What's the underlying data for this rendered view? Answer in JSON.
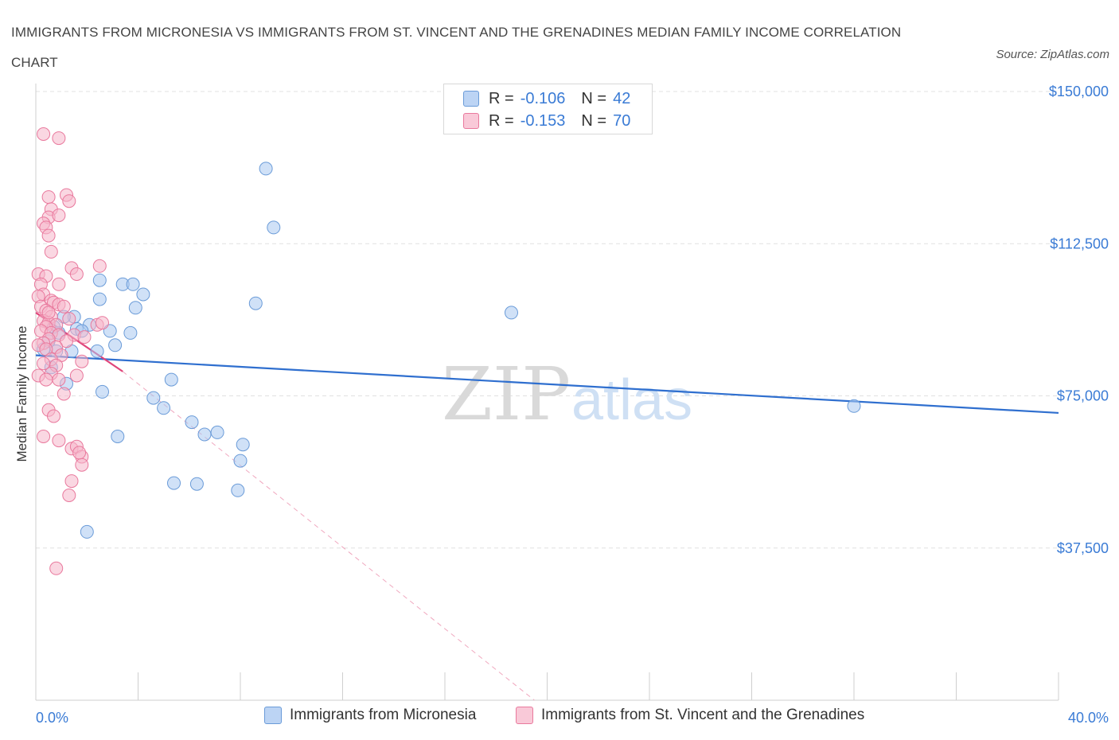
{
  "header": {
    "title": "IMMIGRANTS FROM MICRONESIA VS IMMIGRANTS FROM ST. VINCENT AND THE GRENADINES MEDIAN FAMILY INCOME CORRELATION CHART",
    "source": "Source: ZipAtlas.com"
  },
  "legend": {
    "row1": {
      "r_label": "R =",
      "r_value": "-0.106",
      "n_label": "N =",
      "n_value": "42"
    },
    "row2": {
      "r_label": "R =",
      "r_value": "-0.153",
      "n_label": "N =",
      "n_value": "70"
    }
  },
  "bottom_legend": {
    "series1": "Immigrants from Micronesia",
    "series2": "Immigrants from St. Vincent and the Grenadines"
  },
  "watermark": {
    "part1": "ZIP",
    "part2": "atlas"
  },
  "colors": {
    "blue_fill": "#a9c8f0",
    "blue_stroke": "#6a9bd8",
    "blue_line": "#2f6fcf",
    "pink_fill": "#f6b6ca",
    "pink_stroke": "#e9799d",
    "pink_line": "#e0457a",
    "axis_text": "#3a7bd5",
    "grid": "#e0e0e0"
  },
  "chart_data": {
    "type": "scatter",
    "title": "IMMIGRANTS FROM MICRONESIA VS IMMIGRANTS FROM ST. VINCENT AND THE GRENADINES MEDIAN FAMILY INCOME CORRELATION CHART",
    "xlabel": "",
    "ylabel": "Median Family Income",
    "xlim": [
      0,
      40
    ],
    "ylim": [
      0,
      150000
    ],
    "x_tick_labels": [
      "0.0%",
      "40.0%"
    ],
    "y_ticks": [
      37500,
      75000,
      112500,
      150000
    ],
    "y_tick_labels": [
      "$37,500",
      "$75,000",
      "$112,500",
      "$150,000"
    ],
    "grid": true,
    "series": [
      {
        "name": "Immigrants from Micronesia",
        "color": "blue",
        "points": [
          [
            9.0,
            131000
          ],
          [
            9.3,
            116500
          ],
          [
            2.5,
            103500
          ],
          [
            3.4,
            102500
          ],
          [
            3.8,
            102500
          ],
          [
            4.2,
            100000
          ],
          [
            2.5,
            98800
          ],
          [
            8.6,
            97800
          ],
          [
            3.9,
            96700
          ],
          [
            18.6,
            95500
          ],
          [
            1.5,
            94500
          ],
          [
            2.1,
            92500
          ],
          [
            1.6,
            91500
          ],
          [
            3.7,
            90500
          ],
          [
            0.5,
            88500
          ],
          [
            3.1,
            87500
          ],
          [
            0.8,
            86000
          ],
          [
            1.4,
            86000
          ],
          [
            2.4,
            86000
          ],
          [
            0.6,
            82000
          ],
          [
            1.2,
            78000
          ],
          [
            5.3,
            79000
          ],
          [
            2.6,
            76000
          ],
          [
            4.6,
            74500
          ],
          [
            5.0,
            72000
          ],
          [
            6.1,
            68500
          ],
          [
            7.1,
            66000
          ],
          [
            6.6,
            65500
          ],
          [
            3.2,
            65000
          ],
          [
            8.1,
            63000
          ],
          [
            8.0,
            59000
          ],
          [
            5.4,
            53500
          ],
          [
            6.3,
            53300
          ],
          [
            7.9,
            51700
          ],
          [
            2.0,
            41500
          ],
          [
            32.0,
            72500
          ],
          [
            1.8,
            91000
          ],
          [
            0.9,
            90500
          ],
          [
            0.3,
            86500
          ],
          [
            1.1,
            94500
          ],
          [
            0.7,
            92000
          ],
          [
            2.9,
            91000
          ]
        ],
        "trend": {
          "x": [
            0,
            40
          ],
          "y": [
            85000,
            70800
          ]
        }
      },
      {
        "name": "Immigrants from St. Vincent and the Grenadines",
        "color": "pink",
        "points": [
          [
            0.3,
            139500
          ],
          [
            0.9,
            138500
          ],
          [
            1.2,
            124500
          ],
          [
            0.5,
            124000
          ],
          [
            1.3,
            123000
          ],
          [
            0.6,
            121000
          ],
          [
            0.5,
            119000
          ],
          [
            0.9,
            119500
          ],
          [
            0.3,
            117500
          ],
          [
            0.4,
            116500
          ],
          [
            0.5,
            114500
          ],
          [
            0.6,
            110500
          ],
          [
            2.5,
            107000
          ],
          [
            1.4,
            106500
          ],
          [
            0.1,
            105000
          ],
          [
            1.6,
            105000
          ],
          [
            0.4,
            104500
          ],
          [
            0.9,
            102500
          ],
          [
            0.2,
            102500
          ],
          [
            0.3,
            100000
          ],
          [
            0.1,
            99500
          ],
          [
            0.6,
            98500
          ],
          [
            0.7,
            98000
          ],
          [
            0.9,
            97500
          ],
          [
            1.1,
            97000
          ],
          [
            0.2,
            97000
          ],
          [
            0.4,
            96000
          ],
          [
            0.6,
            94500
          ],
          [
            1.3,
            94000
          ],
          [
            0.3,
            93500
          ],
          [
            0.5,
            93000
          ],
          [
            0.8,
            92500
          ],
          [
            2.4,
            92500
          ],
          [
            0.4,
            92000
          ],
          [
            2.6,
            93000
          ],
          [
            0.2,
            91000
          ],
          [
            0.6,
            90500
          ],
          [
            0.9,
            90000
          ],
          [
            1.5,
            90000
          ],
          [
            1.9,
            89500
          ],
          [
            0.5,
            89000
          ],
          [
            1.2,
            88500
          ],
          [
            0.3,
            88000
          ],
          [
            0.1,
            87500
          ],
          [
            0.8,
            87000
          ],
          [
            0.4,
            86500
          ],
          [
            1.0,
            85000
          ],
          [
            0.6,
            84000
          ],
          [
            0.3,
            83000
          ],
          [
            1.8,
            83500
          ],
          [
            0.8,
            82500
          ],
          [
            0.6,
            80500
          ],
          [
            0.1,
            80000
          ],
          [
            1.6,
            80000
          ],
          [
            0.4,
            79000
          ],
          [
            0.9,
            79000
          ],
          [
            1.1,
            75500
          ],
          [
            0.5,
            71500
          ],
          [
            0.7,
            70000
          ],
          [
            0.3,
            65000
          ],
          [
            0.9,
            64000
          ],
          [
            1.4,
            62000
          ],
          [
            1.6,
            62500
          ],
          [
            1.8,
            60000
          ],
          [
            1.8,
            58000
          ],
          [
            1.4,
            54000
          ],
          [
            1.3,
            50500
          ],
          [
            0.8,
            32500
          ],
          [
            1.7,
            61000
          ],
          [
            0.5,
            95500
          ]
        ],
        "trend": {
          "x": [
            0,
            3.4
          ],
          "y": [
            95500,
            81000
          ]
        },
        "trend_extension": {
          "x": [
            3.4,
            19.5
          ],
          "y": [
            81000,
            0
          ]
        }
      }
    ]
  }
}
